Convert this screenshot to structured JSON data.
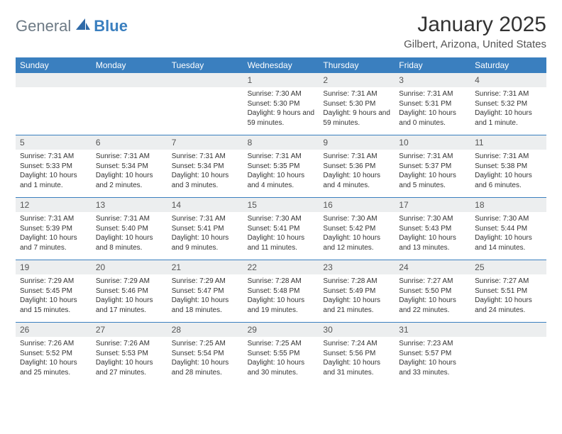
{
  "brand": {
    "part1": "General",
    "part2": "Blue",
    "icon_color": "#2f6aa8"
  },
  "title": "January 2025",
  "location": "Gilbert, Arizona, United States",
  "colors": {
    "header_bg": "#3a7fbf",
    "header_text": "#ffffff",
    "daynum_bg": "#eceeef",
    "rule": "#3a7fbf",
    "text": "#333333",
    "muted": "#555555",
    "background": "#ffffff"
  },
  "dow": [
    "Sunday",
    "Monday",
    "Tuesday",
    "Wednesday",
    "Thursday",
    "Friday",
    "Saturday"
  ],
  "weeks": [
    [
      {
        "day": ""
      },
      {
        "day": ""
      },
      {
        "day": ""
      },
      {
        "day": "1",
        "sunrise": "Sunrise: 7:30 AM",
        "sunset": "Sunset: 5:30 PM",
        "daylight": "Daylight: 9 hours and 59 minutes."
      },
      {
        "day": "2",
        "sunrise": "Sunrise: 7:31 AM",
        "sunset": "Sunset: 5:30 PM",
        "daylight": "Daylight: 9 hours and 59 minutes."
      },
      {
        "day": "3",
        "sunrise": "Sunrise: 7:31 AM",
        "sunset": "Sunset: 5:31 PM",
        "daylight": "Daylight: 10 hours and 0 minutes."
      },
      {
        "day": "4",
        "sunrise": "Sunrise: 7:31 AM",
        "sunset": "Sunset: 5:32 PM",
        "daylight": "Daylight: 10 hours and 1 minute."
      }
    ],
    [
      {
        "day": "5",
        "sunrise": "Sunrise: 7:31 AM",
        "sunset": "Sunset: 5:33 PM",
        "daylight": "Daylight: 10 hours and 1 minute."
      },
      {
        "day": "6",
        "sunrise": "Sunrise: 7:31 AM",
        "sunset": "Sunset: 5:34 PM",
        "daylight": "Daylight: 10 hours and 2 minutes."
      },
      {
        "day": "7",
        "sunrise": "Sunrise: 7:31 AM",
        "sunset": "Sunset: 5:34 PM",
        "daylight": "Daylight: 10 hours and 3 minutes."
      },
      {
        "day": "8",
        "sunrise": "Sunrise: 7:31 AM",
        "sunset": "Sunset: 5:35 PM",
        "daylight": "Daylight: 10 hours and 4 minutes."
      },
      {
        "day": "9",
        "sunrise": "Sunrise: 7:31 AM",
        "sunset": "Sunset: 5:36 PM",
        "daylight": "Daylight: 10 hours and 4 minutes."
      },
      {
        "day": "10",
        "sunrise": "Sunrise: 7:31 AM",
        "sunset": "Sunset: 5:37 PM",
        "daylight": "Daylight: 10 hours and 5 minutes."
      },
      {
        "day": "11",
        "sunrise": "Sunrise: 7:31 AM",
        "sunset": "Sunset: 5:38 PM",
        "daylight": "Daylight: 10 hours and 6 minutes."
      }
    ],
    [
      {
        "day": "12",
        "sunrise": "Sunrise: 7:31 AM",
        "sunset": "Sunset: 5:39 PM",
        "daylight": "Daylight: 10 hours and 7 minutes."
      },
      {
        "day": "13",
        "sunrise": "Sunrise: 7:31 AM",
        "sunset": "Sunset: 5:40 PM",
        "daylight": "Daylight: 10 hours and 8 minutes."
      },
      {
        "day": "14",
        "sunrise": "Sunrise: 7:31 AM",
        "sunset": "Sunset: 5:41 PM",
        "daylight": "Daylight: 10 hours and 9 minutes."
      },
      {
        "day": "15",
        "sunrise": "Sunrise: 7:30 AM",
        "sunset": "Sunset: 5:41 PM",
        "daylight": "Daylight: 10 hours and 11 minutes."
      },
      {
        "day": "16",
        "sunrise": "Sunrise: 7:30 AM",
        "sunset": "Sunset: 5:42 PM",
        "daylight": "Daylight: 10 hours and 12 minutes."
      },
      {
        "day": "17",
        "sunrise": "Sunrise: 7:30 AM",
        "sunset": "Sunset: 5:43 PM",
        "daylight": "Daylight: 10 hours and 13 minutes."
      },
      {
        "day": "18",
        "sunrise": "Sunrise: 7:30 AM",
        "sunset": "Sunset: 5:44 PM",
        "daylight": "Daylight: 10 hours and 14 minutes."
      }
    ],
    [
      {
        "day": "19",
        "sunrise": "Sunrise: 7:29 AM",
        "sunset": "Sunset: 5:45 PM",
        "daylight": "Daylight: 10 hours and 15 minutes."
      },
      {
        "day": "20",
        "sunrise": "Sunrise: 7:29 AM",
        "sunset": "Sunset: 5:46 PM",
        "daylight": "Daylight: 10 hours and 17 minutes."
      },
      {
        "day": "21",
        "sunrise": "Sunrise: 7:29 AM",
        "sunset": "Sunset: 5:47 PM",
        "daylight": "Daylight: 10 hours and 18 minutes."
      },
      {
        "day": "22",
        "sunrise": "Sunrise: 7:28 AM",
        "sunset": "Sunset: 5:48 PM",
        "daylight": "Daylight: 10 hours and 19 minutes."
      },
      {
        "day": "23",
        "sunrise": "Sunrise: 7:28 AM",
        "sunset": "Sunset: 5:49 PM",
        "daylight": "Daylight: 10 hours and 21 minutes."
      },
      {
        "day": "24",
        "sunrise": "Sunrise: 7:27 AM",
        "sunset": "Sunset: 5:50 PM",
        "daylight": "Daylight: 10 hours and 22 minutes."
      },
      {
        "day": "25",
        "sunrise": "Sunrise: 7:27 AM",
        "sunset": "Sunset: 5:51 PM",
        "daylight": "Daylight: 10 hours and 24 minutes."
      }
    ],
    [
      {
        "day": "26",
        "sunrise": "Sunrise: 7:26 AM",
        "sunset": "Sunset: 5:52 PM",
        "daylight": "Daylight: 10 hours and 25 minutes."
      },
      {
        "day": "27",
        "sunrise": "Sunrise: 7:26 AM",
        "sunset": "Sunset: 5:53 PM",
        "daylight": "Daylight: 10 hours and 27 minutes."
      },
      {
        "day": "28",
        "sunrise": "Sunrise: 7:25 AM",
        "sunset": "Sunset: 5:54 PM",
        "daylight": "Daylight: 10 hours and 28 minutes."
      },
      {
        "day": "29",
        "sunrise": "Sunrise: 7:25 AM",
        "sunset": "Sunset: 5:55 PM",
        "daylight": "Daylight: 10 hours and 30 minutes."
      },
      {
        "day": "30",
        "sunrise": "Sunrise: 7:24 AM",
        "sunset": "Sunset: 5:56 PM",
        "daylight": "Daylight: 10 hours and 31 minutes."
      },
      {
        "day": "31",
        "sunrise": "Sunrise: 7:23 AM",
        "sunset": "Sunset: 5:57 PM",
        "daylight": "Daylight: 10 hours and 33 minutes."
      },
      {
        "day": ""
      }
    ]
  ]
}
